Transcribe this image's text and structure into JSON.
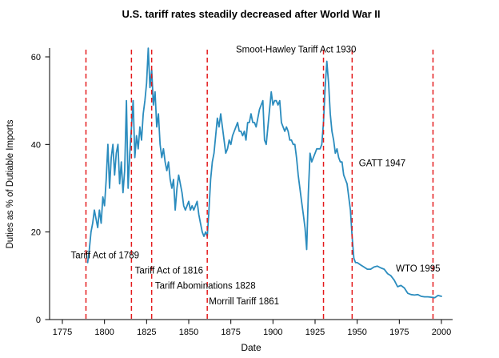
{
  "chart_data": {
    "type": "line",
    "title": "U.S. tariff rates steadily decreased after World War II",
    "xlabel": "Date",
    "ylabel": "Duties as % of Dutiable Imports",
    "xlim": [
      1770,
      2005
    ],
    "ylim": [
      0,
      62
    ],
    "xticks": [
      1775,
      1800,
      1825,
      1850,
      1875,
      1900,
      1925,
      1950,
      1975,
      2000
    ],
    "yticks": [
      0,
      20,
      40,
      60
    ],
    "grid": false,
    "legend": false,
    "line_color": "#2b8cbe",
    "event_line_color": "#e41a1c",
    "event_lines": [
      {
        "year": 1789,
        "label": "Tariff Act of 1789"
      },
      {
        "year": 1816,
        "label": "Tariff Act of 1816"
      },
      {
        "year": 1828,
        "label": "Tariff Abominations 1828"
      },
      {
        "year": 1861,
        "label": "Morrill Tariff 1861"
      },
      {
        "year": 1930,
        "label": "Smoot-Hawley Tariff Act 1930"
      },
      {
        "year": 1947,
        "label": "GATT 1947"
      },
      {
        "year": 1995,
        "label": "WTO 1995"
      }
    ],
    "annotations": [
      {
        "text": "Smoot-Hawley Tariff Act 1930",
        "x": 1878,
        "y": 61
      },
      {
        "text": "GATT 1947",
        "x": 1951,
        "y": 35
      },
      {
        "text": "Tariff Act of 1789",
        "x": 1780,
        "y": 14
      },
      {
        "text": "Tariff Act of 1816",
        "x": 1818,
        "y": 10.5
      },
      {
        "text": "Tariff Abominations 1828",
        "x": 1830,
        "y": 7
      },
      {
        "text": "Morrill Tariff 1861",
        "x": 1862,
        "y": 3.5
      },
      {
        "text": "WTO 1995",
        "x": 1973,
        "y": 11
      }
    ],
    "series": [
      {
        "name": "Duties as % of Dutiable Imports",
        "points": [
          [
            1790,
            13
          ],
          [
            1791,
            16
          ],
          [
            1792,
            20
          ],
          [
            1793,
            22
          ],
          [
            1794,
            25
          ],
          [
            1795,
            23
          ],
          [
            1796,
            21
          ],
          [
            1797,
            25
          ],
          [
            1798,
            22
          ],
          [
            1799,
            28
          ],
          [
            1800,
            26
          ],
          [
            1801,
            32
          ],
          [
            1802,
            40
          ],
          [
            1803,
            30
          ],
          [
            1804,
            37
          ],
          [
            1805,
            40
          ],
          [
            1806,
            33
          ],
          [
            1807,
            38
          ],
          [
            1808,
            40
          ],
          [
            1809,
            31
          ],
          [
            1810,
            36
          ],
          [
            1811,
            29
          ],
          [
            1812,
            34
          ],
          [
            1813,
            50
          ],
          [
            1814,
            30
          ],
          [
            1815,
            38
          ],
          [
            1816,
            44
          ],
          [
            1817,
            50
          ],
          [
            1818,
            37
          ],
          [
            1819,
            42
          ],
          [
            1820,
            39
          ],
          [
            1821,
            44
          ],
          [
            1822,
            41
          ],
          [
            1823,
            47
          ],
          [
            1824,
            50
          ],
          [
            1825,
            54
          ],
          [
            1826,
            62
          ],
          [
            1827,
            53
          ],
          [
            1828,
            57
          ],
          [
            1829,
            49
          ],
          [
            1830,
            52
          ],
          [
            1831,
            44
          ],
          [
            1832,
            47
          ],
          [
            1833,
            40
          ],
          [
            1834,
            37
          ],
          [
            1835,
            39
          ],
          [
            1836,
            36
          ],
          [
            1837,
            34
          ],
          [
            1838,
            36
          ],
          [
            1839,
            32
          ],
          [
            1840,
            30
          ],
          [
            1841,
            32
          ],
          [
            1842,
            25
          ],
          [
            1843,
            30
          ],
          [
            1844,
            33
          ],
          [
            1845,
            31
          ],
          [
            1846,
            29
          ],
          [
            1847,
            26
          ],
          [
            1848,
            25
          ],
          [
            1849,
            26
          ],
          [
            1850,
            27
          ],
          [
            1851,
            25
          ],
          [
            1852,
            26
          ],
          [
            1853,
            25
          ],
          [
            1854,
            26
          ],
          [
            1855,
            27
          ],
          [
            1856,
            24
          ],
          [
            1857,
            22
          ],
          [
            1858,
            20
          ],
          [
            1859,
            19
          ],
          [
            1860,
            20
          ],
          [
            1861,
            19
          ],
          [
            1862,
            25
          ],
          [
            1863,
            32
          ],
          [
            1864,
            36
          ],
          [
            1865,
            38
          ],
          [
            1866,
            42
          ],
          [
            1867,
            46
          ],
          [
            1868,
            44
          ],
          [
            1869,
            47
          ],
          [
            1870,
            44
          ],
          [
            1871,
            41
          ],
          [
            1872,
            38
          ],
          [
            1873,
            39
          ],
          [
            1874,
            41
          ],
          [
            1875,
            40
          ],
          [
            1876,
            42
          ],
          [
            1877,
            43
          ],
          [
            1878,
            44
          ],
          [
            1879,
            45
          ],
          [
            1880,
            43
          ],
          [
            1881,
            43
          ],
          [
            1882,
            42
          ],
          [
            1883,
            43
          ],
          [
            1884,
            41
          ],
          [
            1885,
            45
          ],
          [
            1886,
            45
          ],
          [
            1887,
            47
          ],
          [
            1888,
            45
          ],
          [
            1889,
            45
          ],
          [
            1890,
            44
          ],
          [
            1891,
            46
          ],
          [
            1892,
            48
          ],
          [
            1893,
            49
          ],
          [
            1894,
            50
          ],
          [
            1895,
            41
          ],
          [
            1896,
            40
          ],
          [
            1897,
            44
          ],
          [
            1898,
            48
          ],
          [
            1899,
            52
          ],
          [
            1900,
            49
          ],
          [
            1901,
            50
          ],
          [
            1902,
            50
          ],
          [
            1903,
            49
          ],
          [
            1904,
            50
          ],
          [
            1905,
            45
          ],
          [
            1906,
            44
          ],
          [
            1907,
            43
          ],
          [
            1908,
            44
          ],
          [
            1909,
            43
          ],
          [
            1910,
            41
          ],
          [
            1911,
            41
          ],
          [
            1912,
            40
          ],
          [
            1913,
            40
          ],
          [
            1914,
            37
          ],
          [
            1915,
            33
          ],
          [
            1916,
            30
          ],
          [
            1917,
            27
          ],
          [
            1918,
            24
          ],
          [
            1919,
            21
          ],
          [
            1920,
            16
          ],
          [
            1921,
            29
          ],
          [
            1922,
            38
          ],
          [
            1923,
            36
          ],
          [
            1924,
            37
          ],
          [
            1925,
            38
          ],
          [
            1926,
            39
          ],
          [
            1927,
            39
          ],
          [
            1928,
            39
          ],
          [
            1929,
            40
          ],
          [
            1930,
            45
          ],
          [
            1931,
            53
          ],
          [
            1932,
            59
          ],
          [
            1933,
            54
          ],
          [
            1934,
            47
          ],
          [
            1935,
            43
          ],
          [
            1936,
            41
          ],
          [
            1937,
            38
          ],
          [
            1938,
            39
          ],
          [
            1939,
            37
          ],
          [
            1940,
            36
          ],
          [
            1941,
            36
          ],
          [
            1942,
            33
          ],
          [
            1943,
            32
          ],
          [
            1944,
            31
          ],
          [
            1945,
            28
          ],
          [
            1946,
            25
          ],
          [
            1947,
            19
          ],
          [
            1948,
            14
          ],
          [
            1949,
            13
          ],
          [
            1950,
            13
          ],
          [
            1952,
            12.5
          ],
          [
            1954,
            12
          ],
          [
            1956,
            11.5
          ],
          [
            1958,
            11.5
          ],
          [
            1960,
            12
          ],
          [
            1962,
            12.2
          ],
          [
            1964,
            11.8
          ],
          [
            1966,
            11.5
          ],
          [
            1968,
            10.5
          ],
          [
            1970,
            10
          ],
          [
            1972,
            9
          ],
          [
            1974,
            7.5
          ],
          [
            1976,
            7.8
          ],
          [
            1978,
            7.2
          ],
          [
            1980,
            6
          ],
          [
            1982,
            5.7
          ],
          [
            1984,
            5.6
          ],
          [
            1986,
            5.7
          ],
          [
            1988,
            5.3
          ],
          [
            1990,
            5.2
          ],
          [
            1992,
            5.2
          ],
          [
            1994,
            5.1
          ],
          [
            1996,
            5
          ],
          [
            1998,
            5.5
          ],
          [
            2000,
            5.3
          ]
        ]
      }
    ]
  }
}
